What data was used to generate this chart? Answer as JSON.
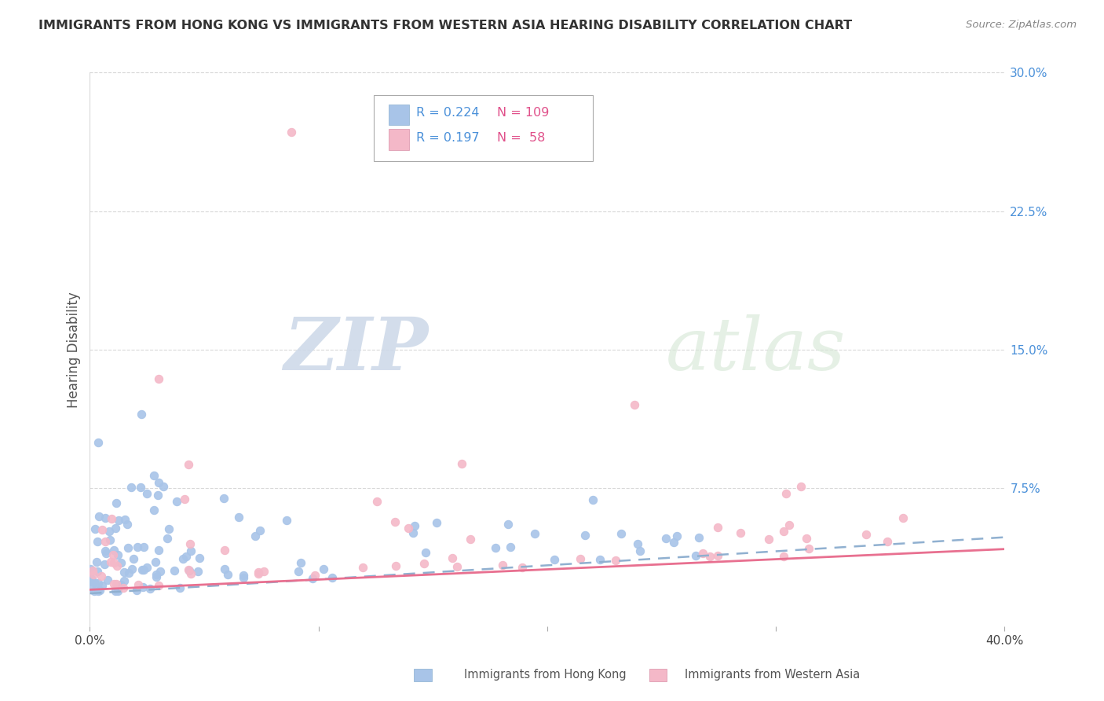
{
  "title": "IMMIGRANTS FROM HONG KONG VS IMMIGRANTS FROM WESTERN ASIA HEARING DISABILITY CORRELATION CHART",
  "source": "Source: ZipAtlas.com",
  "ylabel": "Hearing Disability",
  "xlim": [
    0.0,
    0.4
  ],
  "ylim": [
    0.0,
    0.3
  ],
  "xticks": [
    0.0,
    0.1,
    0.2,
    0.3,
    0.4
  ],
  "xticklabels": [
    "0.0%",
    "",
    "",
    "",
    "40.0%"
  ],
  "yticks_right": [
    0.0,
    0.075,
    0.15,
    0.225,
    0.3
  ],
  "yticklabels_right": [
    "",
    "7.5%",
    "15.0%",
    "22.5%",
    "30.0%"
  ],
  "hk_color": "#a8c4e8",
  "wa_color": "#f4b8c8",
  "hk_line_color": "#90b0d0",
  "wa_line_color": "#e87090",
  "title_color": "#333333",
  "legend_r_color": "#4a90d9",
  "legend_n_color": "#e0508a",
  "right_axis_color": "#4a90d9",
  "background": "#ffffff",
  "watermark_zip": "ZIP",
  "watermark_atlas": "atlas",
  "grid_color": "#d8d8d8",
  "hk_trend_intercept": 0.018,
  "hk_trend_slope": 0.076,
  "wa_trend_intercept": 0.02,
  "wa_trend_slope": 0.055
}
